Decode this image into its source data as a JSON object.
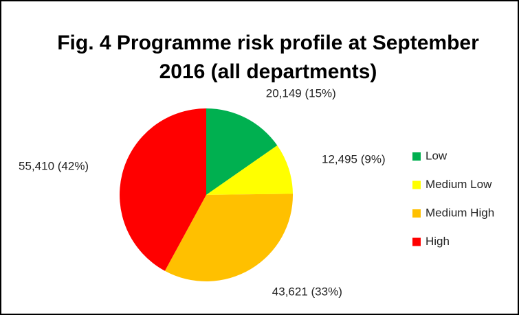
{
  "chart_data": {
    "type": "pie",
    "title": "Fig. 4 Programme risk profile at September 2016 (all departments)",
    "categories": [
      "Low",
      "Medium Low",
      "Medium High",
      "High"
    ],
    "values": [
      20149,
      12495,
      43621,
      55410
    ],
    "value_labels": [
      "20,149 (15%)",
      "12,495 (9%)",
      "43,621 (33%)",
      "55,410 (42%)"
    ],
    "colors": [
      "#00b050",
      "#ffff00",
      "#ffc000",
      "#ff0000"
    ],
    "legend": "right"
  }
}
